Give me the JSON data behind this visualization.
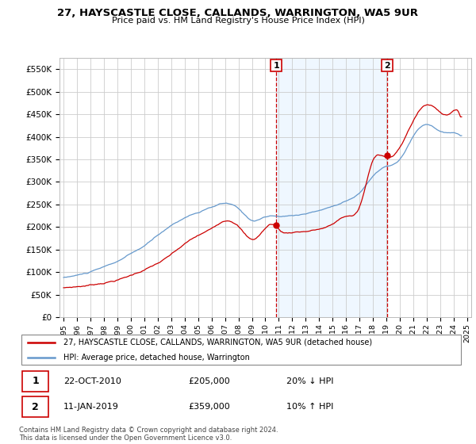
{
  "title": "27, HAYSCASTLE CLOSE, CALLANDS, WARRINGTON, WA5 9UR",
  "subtitle": "Price paid vs. HM Land Registry's House Price Index (HPI)",
  "background_color": "#ffffff",
  "grid_color": "#cccccc",
  "hpi_color": "#6699cc",
  "price_color": "#cc0000",
  "shade_color": "#ddeeff",
  "ylim": [
    0,
    575000
  ],
  "yticks": [
    0,
    50000,
    100000,
    150000,
    200000,
    250000,
    300000,
    350000,
    400000,
    450000,
    500000,
    550000
  ],
  "ytick_labels": [
    "£0",
    "£50K",
    "£100K",
    "£150K",
    "£200K",
    "£250K",
    "£300K",
    "£350K",
    "£400K",
    "£450K",
    "£500K",
    "£550K"
  ],
  "legend_price_label": "27, HAYSCASTLE CLOSE, CALLANDS, WARRINGTON, WA5 9UR (detached house)",
  "legend_hpi_label": "HPI: Average price, detached house, Warrington",
  "marker1_date": "22-OCT-2010",
  "marker1_price": 205000,
  "marker1_x": 2010.8,
  "marker1_text": "20% ↓ HPI",
  "marker2_date": "11-JAN-2019",
  "marker2_price": 359000,
  "marker2_x": 2019.05,
  "marker2_text": "10% ↑ HPI",
  "footnote": "Contains HM Land Registry data © Crown copyright and database right 2024.\nThis data is licensed under the Open Government Licence v3.0.",
  "xlim_start": 1994.7,
  "xlim_end": 2025.3,
  "shade_xstart": 2010.8,
  "shade_xend": 2019.05
}
